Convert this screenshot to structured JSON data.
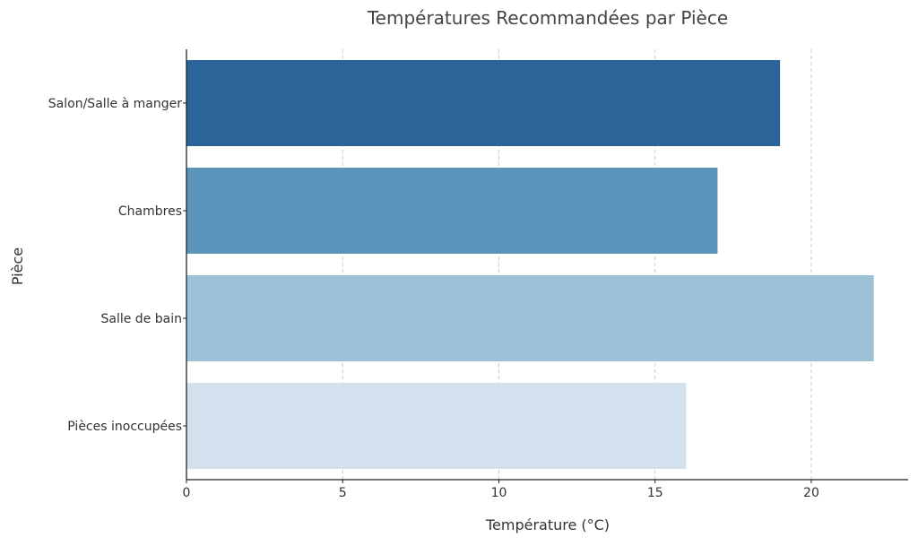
{
  "chart_data": {
    "type": "bar",
    "orientation": "horizontal",
    "title": "Températures Recommandées par Pièce",
    "xlabel": "Température (°C)",
    "ylabel": "Pièce",
    "categories": [
      "Salon/Salle à manger",
      "Chambres",
      "Salle de bain",
      "Pièces inoccupées"
    ],
    "values": [
      19,
      17,
      22,
      16
    ],
    "colors": [
      "#2a6499",
      "#5b94ba",
      "#9dc1d6",
      "#d3e1ef"
    ],
    "xlim": [
      0,
      23.1
    ],
    "xticks": [
      0,
      5,
      10,
      15,
      20
    ],
    "grid": "x-dashed",
    "legend": "none"
  }
}
